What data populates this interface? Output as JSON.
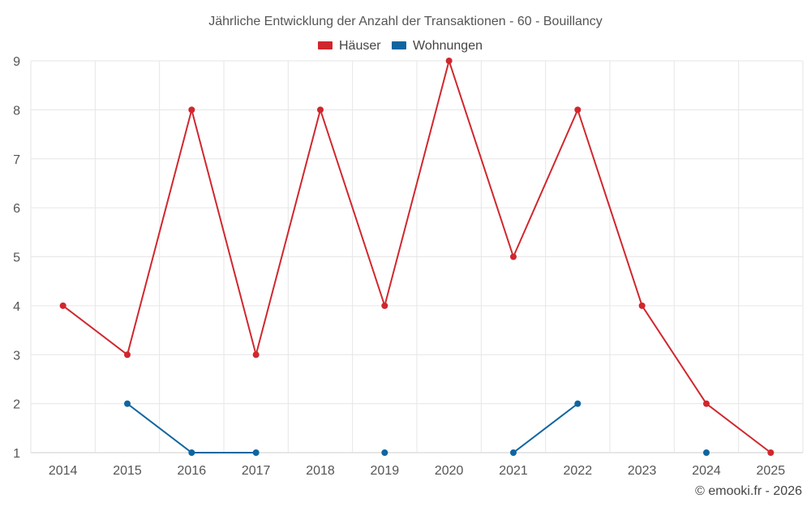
{
  "chart_data": {
    "type": "line",
    "title": "Jährliche Entwicklung der Anzahl der Transaktionen - 60 - Bouillancy",
    "xlabel": "",
    "ylabel": "",
    "categories": [
      "2014",
      "2015",
      "2016",
      "2017",
      "2018",
      "2019",
      "2020",
      "2021",
      "2022",
      "2023",
      "2024",
      "2025"
    ],
    "ylim": [
      1,
      9
    ],
    "yticks": [
      1,
      2,
      3,
      4,
      5,
      6,
      7,
      8,
      9
    ],
    "grid": true,
    "legend": "top-center",
    "series": [
      {
        "name": "Häuser",
        "color": "#d0272d",
        "values": [
          4,
          3,
          8,
          3,
          8,
          4,
          9,
          5,
          8,
          4,
          2,
          1
        ]
      },
      {
        "name": "Wohnungen",
        "color": "#0f65a0",
        "values": [
          null,
          2,
          1,
          1,
          null,
          1,
          null,
          1,
          2,
          null,
          1,
          null
        ]
      }
    ]
  },
  "footer": {
    "copyright": "© emooki.fr - 2026"
  }
}
